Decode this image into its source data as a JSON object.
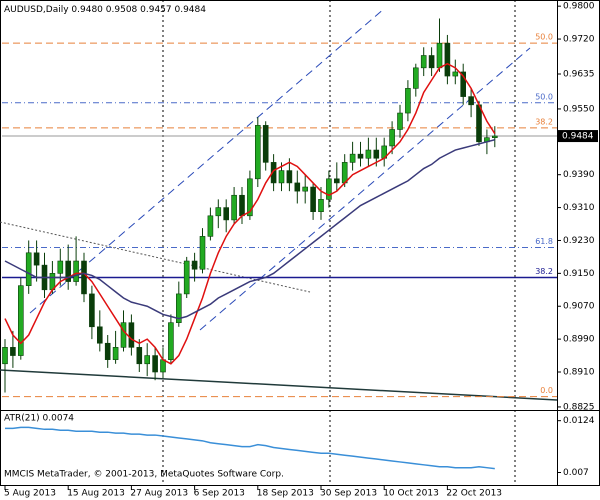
{
  "chart_data": {
    "type": "candlestick",
    "title": "AUDUSD,Daily",
    "subtitle": "0.9480 0.9508 0.9457 0.9484",
    "categories": [
      "5 Aug 2013",
      null,
      null,
      null,
      null,
      null,
      null,
      null,
      "15 Aug 2013",
      null,
      null,
      null,
      null,
      null,
      null,
      null,
      "27 Aug 2013",
      null,
      null,
      null,
      null,
      null,
      null,
      null,
      "6 Sep 2013",
      null,
      null,
      null,
      null,
      null,
      null,
      null,
      "18 Sep 2013",
      null,
      null,
      null,
      null,
      null,
      null,
      null,
      "30 Sep 2013",
      null,
      null,
      null,
      null,
      null,
      null,
      null,
      "10 Oct 2013",
      null,
      null,
      null,
      null,
      null,
      null,
      null,
      "22 Oct 2013",
      null,
      null,
      null,
      null,
      null,
      null
    ],
    "open": [
      0.893,
      0.897,
      0.895,
      0.912,
      0.92,
      0.917,
      0.911,
      0.915,
      0.918,
      0.913,
      0.918,
      0.91,
      0.902,
      0.898,
      0.894,
      0.897,
      0.903,
      0.897,
      0.893,
      0.895,
      0.891,
      0.894,
      0.903,
      0.91,
      0.918,
      0.916,
      0.924,
      0.929,
      0.931,
      0.928,
      0.934,
      0.929,
      0.938,
      0.951,
      0.942,
      0.937,
      0.94,
      0.937,
      0.935,
      0.936,
      0.93,
      0.933,
      0.938,
      0.937,
      0.942,
      0.944,
      0.943,
      0.945,
      0.943,
      0.946,
      0.95,
      0.954,
      0.96,
      0.965,
      0.968,
      0.965,
      0.971,
      0.963,
      0.964,
      0.958,
      0.956,
      0.947,
      0.948
    ],
    "high": [
      0.899,
      0.901,
      0.914,
      0.923,
      0.923,
      0.92,
      0.918,
      0.921,
      0.922,
      0.924,
      0.92,
      0.912,
      0.906,
      0.9,
      0.901,
      0.906,
      0.905,
      0.899,
      0.898,
      0.897,
      0.897,
      0.905,
      0.913,
      0.919,
      0.92,
      0.926,
      0.931,
      0.933,
      0.933,
      0.936,
      0.936,
      0.94,
      0.953,
      0.952,
      0.944,
      0.942,
      0.943,
      0.94,
      0.939,
      0.937,
      0.936,
      0.94,
      0.942,
      0.944,
      0.947,
      0.947,
      0.948,
      0.948,
      0.948,
      0.952,
      0.956,
      0.962,
      0.966,
      0.97,
      0.97,
      0.977,
      0.973,
      0.967,
      0.966,
      0.96,
      0.957,
      0.95,
      0.9508
    ],
    "low": [
      0.886,
      0.892,
      0.894,
      0.91,
      0.913,
      0.909,
      0.91,
      0.912,
      0.911,
      0.912,
      0.908,
      0.899,
      0.896,
      0.892,
      0.893,
      0.896,
      0.895,
      0.891,
      0.89,
      0.889,
      0.8895,
      0.893,
      0.902,
      0.909,
      0.913,
      0.915,
      0.923,
      0.926,
      0.925,
      0.927,
      0.927,
      0.928,
      0.936,
      0.94,
      0.935,
      0.935,
      0.935,
      0.932,
      0.932,
      0.928,
      0.928,
      0.931,
      0.935,
      0.936,
      0.94,
      0.941,
      0.941,
      0.941,
      0.941,
      0.944,
      0.948,
      0.952,
      0.958,
      0.963,
      0.963,
      0.964,
      0.961,
      0.961,
      0.956,
      0.953,
      0.946,
      0.944,
      0.9457
    ],
    "close": [
      0.897,
      0.895,
      0.912,
      0.92,
      0.917,
      0.911,
      0.915,
      0.918,
      0.913,
      0.918,
      0.91,
      0.902,
      0.898,
      0.894,
      0.897,
      0.903,
      0.897,
      0.893,
      0.895,
      0.891,
      0.894,
      0.903,
      0.91,
      0.918,
      0.916,
      0.924,
      0.929,
      0.931,
      0.928,
      0.934,
      0.929,
      0.938,
      0.951,
      0.942,
      0.937,
      0.94,
      0.937,
      0.935,
      0.936,
      0.93,
      0.933,
      0.938,
      0.937,
      0.942,
      0.944,
      0.943,
      0.945,
      0.943,
      0.946,
      0.95,
      0.954,
      0.96,
      0.965,
      0.968,
      0.965,
      0.971,
      0.963,
      0.964,
      0.958,
      0.956,
      0.947,
      0.948,
      0.9484
    ],
    "bull_color": "#22aa22",
    "bear_color": "#0a3d0a",
    "overlays": [
      {
        "color": "#e01010",
        "values": [
          0.904,
          0.9,
          0.898,
          0.9,
          0.904,
          0.908,
          0.911,
          0.913,
          0.914,
          0.915,
          0.915,
          0.913,
          0.91,
          0.907,
          0.904,
          0.901,
          0.899,
          0.898,
          0.899,
          0.897,
          0.894,
          0.893,
          0.895,
          0.899,
          0.904,
          0.909,
          0.915,
          0.92,
          0.924,
          0.927,
          0.929,
          0.93,
          0.933,
          0.937,
          0.94,
          0.941,
          0.942,
          0.941,
          0.939,
          0.937,
          0.935,
          0.934,
          0.935,
          0.937,
          0.939,
          0.94,
          0.941,
          0.942,
          0.943,
          0.945,
          0.947,
          0.95,
          0.954,
          0.959,
          0.962,
          0.965,
          0.966,
          0.965,
          0.963,
          0.96,
          0.956,
          0.952,
          0.949
        ]
      },
      {
        "color": "#3a3a7a",
        "values": [
          0.918,
          0.917,
          0.916,
          0.915,
          0.914,
          0.914,
          0.914,
          0.914,
          0.914,
          0.9145,
          0.915,
          0.9145,
          0.9135,
          0.912,
          0.9105,
          0.909,
          0.908,
          0.9075,
          0.907,
          0.906,
          0.905,
          0.9045,
          0.904,
          0.9045,
          0.9055,
          0.9065,
          0.9075,
          0.909,
          0.91,
          0.911,
          0.912,
          0.913,
          0.9135,
          0.914,
          0.915,
          0.9165,
          0.918,
          0.9195,
          0.921,
          0.9225,
          0.924,
          0.9255,
          0.927,
          0.9285,
          0.93,
          0.9315,
          0.9325,
          0.9335,
          0.9345,
          0.9355,
          0.9365,
          0.9375,
          0.939,
          0.9405,
          0.9415,
          0.943,
          0.944,
          0.945,
          0.9455,
          0.946,
          0.9465,
          0.947,
          0.9475
        ]
      }
    ],
    "ylim": [
      0.882,
      0.9815
    ],
    "yticks": [
      {
        "value": 0.98,
        "label": "0.9800"
      },
      {
        "value": 0.972,
        "label": "0.9720"
      },
      {
        "value": 0.9635,
        "label": "0.9635"
      },
      {
        "value": 0.955,
        "label": "0.9550"
      },
      {
        "value": 0.939,
        "label": "0.9390"
      },
      {
        "value": 0.931,
        "label": "0.9310"
      },
      {
        "value": 0.923,
        "label": "0.9230"
      },
      {
        "value": 0.915,
        "label": "0.9150"
      },
      {
        "value": 0.907,
        "label": "0.9070"
      },
      {
        "value": 0.899,
        "label": "0.8990"
      },
      {
        "value": 0.891,
        "label": "0.8910"
      },
      {
        "value": 0.8825,
        "label": "0.8825"
      }
    ],
    "last_price": {
      "value": 0.9484,
      "label": "0.9484"
    },
    "fib_levels": [
      {
        "value": 0.885,
        "label": "0.0",
        "color": "#e8803a",
        "style": "dashed"
      },
      {
        "value": 0.9504,
        "label": "38.2",
        "color": "#e8803a",
        "style": "dashed"
      },
      {
        "value": 0.971,
        "label": "50.0",
        "color": "#e8803a",
        "style": "dashed"
      },
      {
        "value": 0.9213,
        "label": "61.8",
        "color": "#4a6ac8",
        "style": "dashdot"
      },
      {
        "value": 0.9565,
        "label": "50.0",
        "color": "#4a6ac8",
        "style": "dashdot"
      },
      {
        "value": 0.914,
        "label": "38.2",
        "color": "#1a1a90",
        "style": "solid"
      }
    ],
    "indicator": {
      "type": "line",
      "title": "ATR(21) 0.0074",
      "color": "#3a8fd8",
      "values": [
        0.0116,
        0.0116,
        0.0117,
        0.0117,
        0.0116,
        0.0115,
        0.0115,
        0.0114,
        0.0114,
        0.0113,
        0.0113,
        0.0113,
        0.0112,
        0.0112,
        0.0111,
        0.0111,
        0.011,
        0.011,
        0.0109,
        0.0109,
        0.0108,
        0.0107,
        0.0106,
        0.0105,
        0.0104,
        0.0103,
        0.0101,
        0.01,
        0.0099,
        0.0098,
        0.0097,
        0.0097,
        0.0099,
        0.0098,
        0.0096,
        0.0095,
        0.0094,
        0.0093,
        0.0092,
        0.0091,
        0.009,
        0.009,
        0.0089,
        0.0088,
        0.0087,
        0.0086,
        0.0085,
        0.0084,
        0.0083,
        0.0082,
        0.0081,
        0.008,
        0.0079,
        0.0078,
        0.0077,
        0.0076,
        0.0076,
        0.0075,
        0.0075,
        0.0075,
        0.0076,
        0.0075,
        0.0074
      ],
      "ylim": [
        0.0058,
        0.0132
      ],
      "yticks": [
        0.0124,
        0.007
      ]
    },
    "footer": "MMCIS MetaTrader, © 2001-2013, MetaQuotes Software Corp."
  }
}
